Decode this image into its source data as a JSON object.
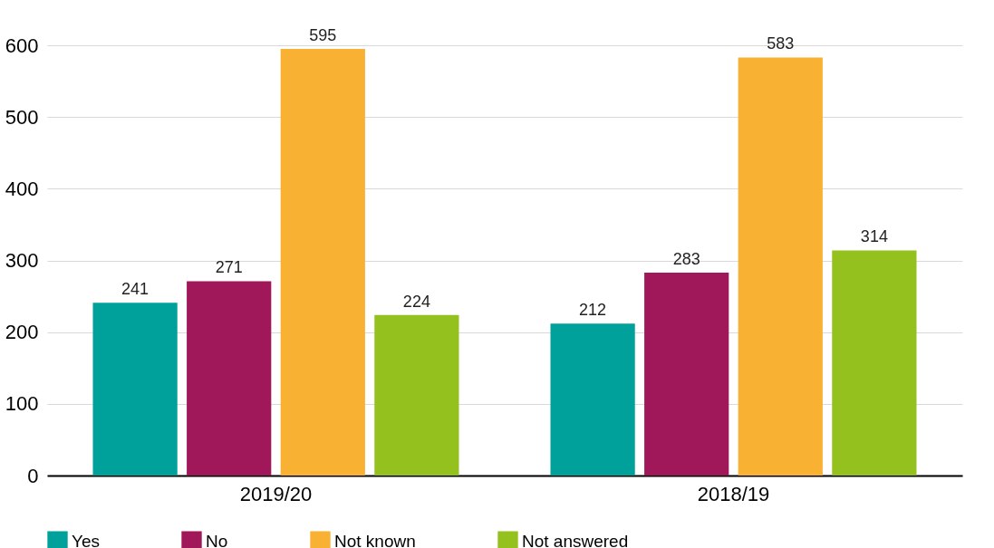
{
  "chart_data": {
    "type": "bar",
    "categories": [
      "2019/20",
      "2018/19"
    ],
    "series": [
      {
        "name": "Yes",
        "color": "#00a19a",
        "values": [
          241,
          212
        ]
      },
      {
        "name": "No",
        "color": "#a0185a",
        "values": [
          271,
          283
        ]
      },
      {
        "name": "Not known",
        "color": "#f8b133",
        "values": [
          595,
          583
        ]
      },
      {
        "name": "Not answered",
        "color": "#95c11f",
        "values": [
          224,
          314
        ]
      }
    ],
    "ylim": [
      0,
      600
    ],
    "yticks": [
      0,
      100,
      200,
      300,
      400,
      500,
      600
    ],
    "grid": "y",
    "legend": "bottom",
    "data_labels": true
  }
}
